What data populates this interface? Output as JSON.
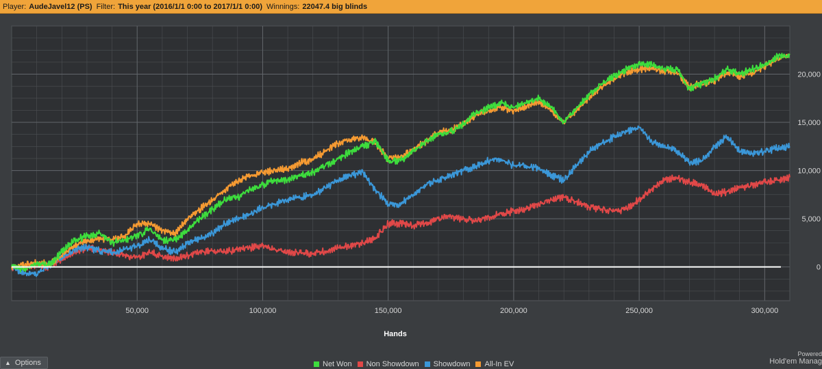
{
  "header": {
    "player_label": "Player:",
    "player_value": "AudeJavel12 (PS)",
    "filter_label": "Filter:",
    "filter_value": "This year (2016/1/1 0:00 to 2017/1/1 0:00)",
    "winnings_label": "Winnings:",
    "winnings_value": "22047.4 big blinds"
  },
  "footer": {
    "options_label": "Options",
    "powered_line1": "Powered",
    "powered_line2": "Hold'em Manag"
  },
  "colors": {
    "background": "#3a3d40",
    "plot_background": "#2e3033",
    "grid": "#4c4f53",
    "zero_line": "#ffffff",
    "header_bar": "#f0a43a"
  },
  "chart_data": {
    "type": "line",
    "xlabel": "Hands",
    "ylabel": "",
    "xlim": [
      0,
      310000
    ],
    "ylim": [
      -3500,
      25000
    ],
    "x_ticks": [
      50000,
      100000,
      150000,
      200000,
      250000,
      300000
    ],
    "x_tick_labels": [
      "50,000",
      "100,000",
      "150,000",
      "200,000",
      "250,000",
      "300,000"
    ],
    "y_ticks": [
      0,
      5000,
      10000,
      15000,
      20000
    ],
    "y_tick_labels": [
      "0",
      "5,000",
      "10,000",
      "15,000",
      "20,000"
    ],
    "grid": true,
    "legend_position": "bottom",
    "series": [
      {
        "name": "Net Won",
        "color": "#3ddc3d",
        "x": [
          0,
          5000,
          10000,
          15000,
          20000,
          25000,
          30000,
          35000,
          40000,
          45000,
          50000,
          55000,
          60000,
          65000,
          70000,
          75000,
          80000,
          85000,
          90000,
          95000,
          100000,
          105000,
          110000,
          115000,
          120000,
          125000,
          130000,
          135000,
          140000,
          145000,
          150000,
          155000,
          160000,
          165000,
          170000,
          175000,
          180000,
          185000,
          190000,
          195000,
          200000,
          205000,
          210000,
          215000,
          220000,
          225000,
          230000,
          235000,
          240000,
          245000,
          250000,
          255000,
          260000,
          265000,
          270000,
          275000,
          280000,
          285000,
          290000,
          295000,
          300000,
          305000,
          310000
        ],
        "y": [
          0,
          -300,
          300,
          200,
          1500,
          2800,
          3200,
          3500,
          2500,
          2800,
          3200,
          4000,
          2800,
          2800,
          3800,
          5000,
          6000,
          7000,
          7200,
          8000,
          8500,
          9000,
          9000,
          9500,
          9800,
          10500,
          11200,
          12000,
          12500,
          13000,
          11000,
          11000,
          12000,
          13000,
          13800,
          14000,
          14800,
          16000,
          16500,
          17000,
          16500,
          17000,
          17500,
          16500,
          15000,
          16500,
          17800,
          19000,
          19800,
          20500,
          21000,
          21000,
          20500,
          20500,
          18500,
          19000,
          19500,
          20500,
          20000,
          20500,
          21000,
          21800,
          22000
        ]
      },
      {
        "name": "Non Showdown",
        "color": "#e04848",
        "x": [
          0,
          5000,
          10000,
          15000,
          20000,
          25000,
          30000,
          35000,
          40000,
          45000,
          50000,
          55000,
          60000,
          65000,
          70000,
          75000,
          80000,
          85000,
          90000,
          95000,
          100000,
          105000,
          110000,
          115000,
          120000,
          125000,
          130000,
          135000,
          140000,
          145000,
          150000,
          155000,
          160000,
          165000,
          170000,
          175000,
          180000,
          185000,
          190000,
          195000,
          200000,
          205000,
          210000,
          215000,
          220000,
          225000,
          230000,
          235000,
          240000,
          245000,
          250000,
          255000,
          260000,
          265000,
          270000,
          275000,
          280000,
          285000,
          290000,
          295000,
          300000,
          305000,
          310000
        ],
        "y": [
          0,
          -100,
          200,
          0,
          800,
          1500,
          2000,
          1800,
          1500,
          1200,
          1000,
          1500,
          1200,
          800,
          1200,
          1500,
          1700,
          1600,
          1800,
          2000,
          2200,
          1800,
          1500,
          1500,
          1400,
          1600,
          2000,
          2200,
          2500,
          3000,
          4500,
          4500,
          4300,
          4500,
          5000,
          5200,
          5000,
          4800,
          5200,
          5500,
          5800,
          6000,
          6500,
          7000,
          7200,
          6800,
          6200,
          6000,
          5800,
          6000,
          7000,
          8000,
          9000,
          9200,
          8800,
          8500,
          7500,
          7800,
          8200,
          8500,
          8800,
          9000,
          9300
        ]
      },
      {
        "name": "Showdown",
        "color": "#3b97d8",
        "x": [
          0,
          5000,
          10000,
          15000,
          20000,
          25000,
          30000,
          35000,
          40000,
          45000,
          50000,
          55000,
          60000,
          65000,
          70000,
          75000,
          80000,
          85000,
          90000,
          95000,
          100000,
          105000,
          110000,
          115000,
          120000,
          125000,
          130000,
          135000,
          140000,
          145000,
          150000,
          155000,
          160000,
          165000,
          170000,
          175000,
          180000,
          185000,
          190000,
          195000,
          200000,
          205000,
          210000,
          215000,
          220000,
          225000,
          230000,
          235000,
          240000,
          245000,
          250000,
          255000,
          260000,
          265000,
          270000,
          275000,
          280000,
          285000,
          290000,
          295000,
          300000,
          305000,
          310000
        ],
        "y": [
          0,
          -600,
          -800,
          200,
          1000,
          1800,
          2000,
          1700,
          1500,
          1800,
          2200,
          2800,
          2000,
          1500,
          2500,
          3000,
          3500,
          4500,
          5000,
          5500,
          6200,
          6500,
          7000,
          7200,
          7500,
          8200,
          9000,
          9500,
          9800,
          8000,
          6500,
          6500,
          7500,
          8500,
          9000,
          9500,
          10000,
          10500,
          11000,
          11200,
          10500,
          10500,
          10200,
          9500,
          9000,
          10500,
          12000,
          12800,
          13500,
          14000,
          14500,
          13000,
          12500,
          12000,
          10800,
          11000,
          12500,
          13500,
          12000,
          11800,
          12000,
          12300,
          12500
        ]
      },
      {
        "name": "All-In EV",
        "color": "#f59a32",
        "x": [
          0,
          5000,
          10000,
          15000,
          20000,
          25000,
          30000,
          35000,
          40000,
          45000,
          50000,
          55000,
          60000,
          65000,
          70000,
          75000,
          80000,
          85000,
          90000,
          95000,
          100000,
          105000,
          110000,
          115000,
          120000,
          125000,
          130000,
          135000,
          140000,
          145000,
          150000,
          155000,
          160000,
          165000,
          170000,
          175000,
          180000,
          185000,
          190000,
          195000,
          200000,
          205000,
          210000,
          215000,
          220000,
          225000,
          230000,
          235000,
          240000,
          245000,
          250000,
          255000,
          260000,
          265000,
          270000,
          275000,
          280000,
          285000,
          290000,
          295000,
          300000,
          305000,
          310000
        ],
        "y": [
          0,
          200,
          400,
          300,
          1200,
          2200,
          2800,
          3000,
          2800,
          3200,
          4500,
          4500,
          3800,
          3500,
          5000,
          6000,
          7000,
          8000,
          8800,
          9500,
          9800,
          10000,
          10200,
          10800,
          11200,
          12000,
          12800,
          13200,
          13500,
          12800,
          11200,
          11500,
          12200,
          13000,
          14000,
          14200,
          14800,
          15800,
          16200,
          16600,
          16200,
          16700,
          17200,
          16300,
          15000,
          16200,
          17500,
          18700,
          19600,
          20200,
          20500,
          20700,
          20300,
          20200,
          18700,
          19000,
          19300,
          20200,
          19800,
          20200,
          20800,
          21600,
          22000
        ]
      }
    ]
  }
}
